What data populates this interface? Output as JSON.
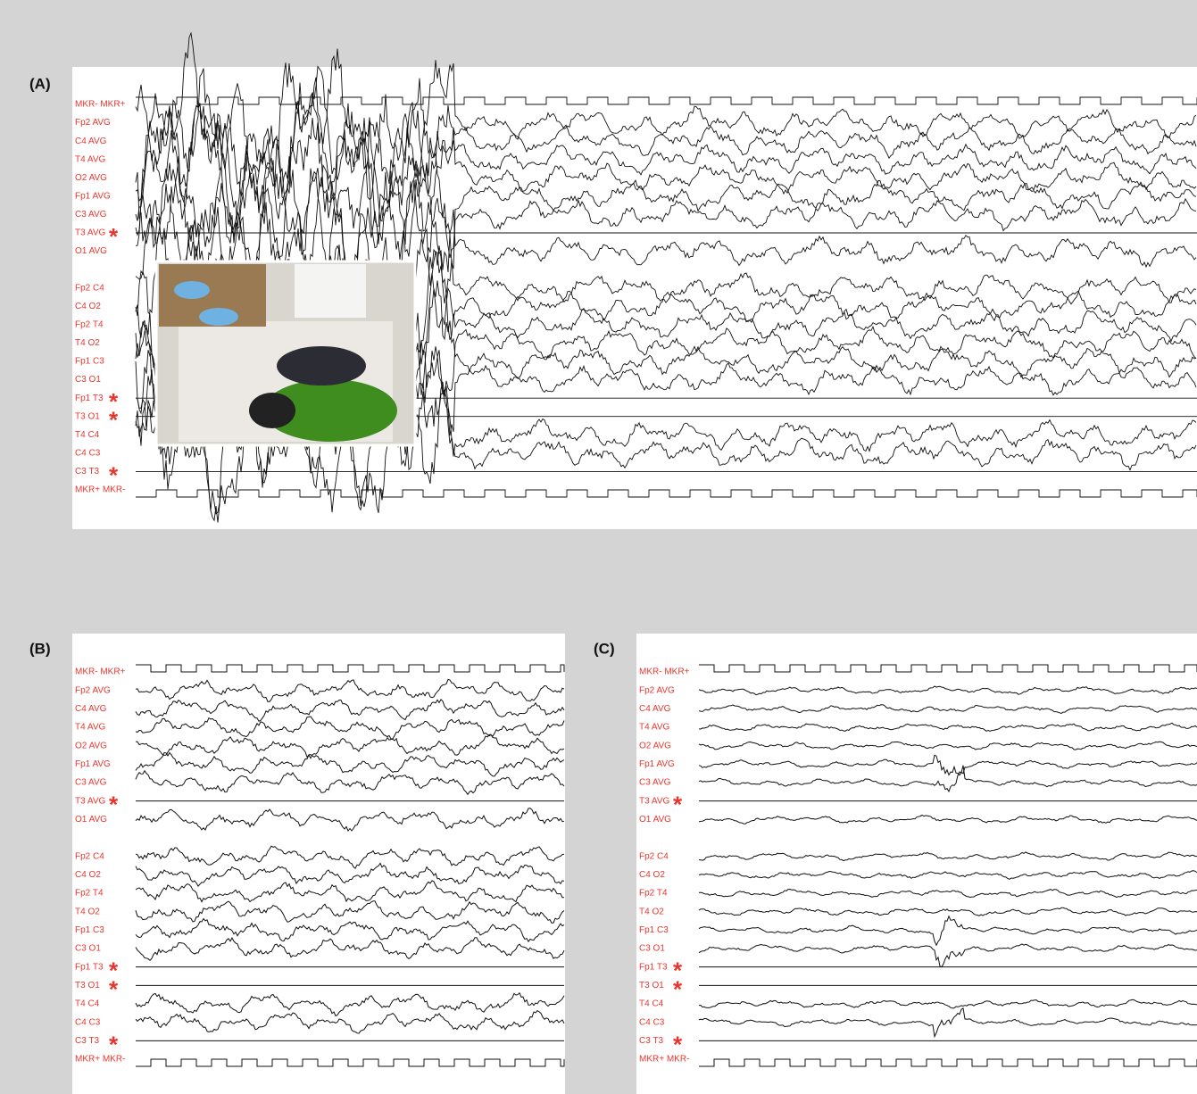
{
  "panels": [
    {
      "label": "(A)",
      "channels": [
        {
          "label": "MKR- MKR+"
        },
        {
          "label": "Fp2 AVG"
        },
        {
          "label": "C4 AVG"
        },
        {
          "label": "T4 AVG"
        },
        {
          "label": "O2 AVG"
        },
        {
          "label": "Fp1 AVG"
        },
        {
          "label": "C3 AVG"
        },
        {
          "label": "T3 AVG",
          "mark": "*"
        },
        {
          "label": "O1 AVG"
        },
        {
          "label": "Fp2 C4"
        },
        {
          "label": "C4 O2"
        },
        {
          "label": "Fp2 T4"
        },
        {
          "label": "T4 O2"
        },
        {
          "label": "Fp1 C3"
        },
        {
          "label": "C3 O1"
        },
        {
          "label": "Fp1 T3",
          "mark": "*"
        },
        {
          "label": "T3 O1",
          "mark": "*"
        },
        {
          "label": "T4 C4"
        },
        {
          "label": "C4 C3"
        },
        {
          "label": "C3 T3",
          "mark": "*"
        },
        {
          "label": "MKR+ MKR-"
        }
      ]
    },
    {
      "label": "(B)",
      "channels": [
        {
          "label": "MKR- MKR+"
        },
        {
          "label": "Fp2 AVG"
        },
        {
          "label": "C4 AVG"
        },
        {
          "label": "T4 AVG"
        },
        {
          "label": "O2 AVG"
        },
        {
          "label": "Fp1 AVG"
        },
        {
          "label": "C3 AVG"
        },
        {
          "label": "T3 AVG",
          "mark": "*"
        },
        {
          "label": "O1 AVG"
        },
        {
          "label": "Fp2 C4"
        },
        {
          "label": "C4 O2"
        },
        {
          "label": "Fp2 T4"
        },
        {
          "label": "T4 O2"
        },
        {
          "label": "Fp1 C3"
        },
        {
          "label": "C3 O1"
        },
        {
          "label": "Fp1 T3",
          "mark": "*"
        },
        {
          "label": "T3 O1",
          "mark": "*"
        },
        {
          "label": "T4 C4"
        },
        {
          "label": "C4 C3"
        },
        {
          "label": "C3 T3",
          "mark": "*"
        },
        {
          "label": "MKR+ MKR-"
        }
      ]
    },
    {
      "label": "(C)",
      "channels": [
        {
          "label": "MKR- MKR+"
        },
        {
          "label": "Fp2 AVG"
        },
        {
          "label": "C4 AVG"
        },
        {
          "label": "T4 AVG"
        },
        {
          "label": "O2 AVG"
        },
        {
          "label": "Fp1 AVG"
        },
        {
          "label": "C3 AVG"
        },
        {
          "label": "T3 AVG",
          "mark": "*"
        },
        {
          "label": "O1 AVG"
        },
        {
          "label": "Fp2 C4"
        },
        {
          "label": "C4 O2"
        },
        {
          "label": "Fp2 T4"
        },
        {
          "label": "T4 O2"
        },
        {
          "label": "Fp1 C3"
        },
        {
          "label": "C3 O1"
        },
        {
          "label": "Fp1 T3",
          "mark": "*"
        },
        {
          "label": "T3 O1",
          "mark": "*"
        },
        {
          "label": "T4 C4"
        },
        {
          "label": "C4 C3"
        },
        {
          "label": "C3 T3",
          "mark": "*"
        },
        {
          "label": "MKR+ MKR-"
        }
      ]
    }
  ]
}
